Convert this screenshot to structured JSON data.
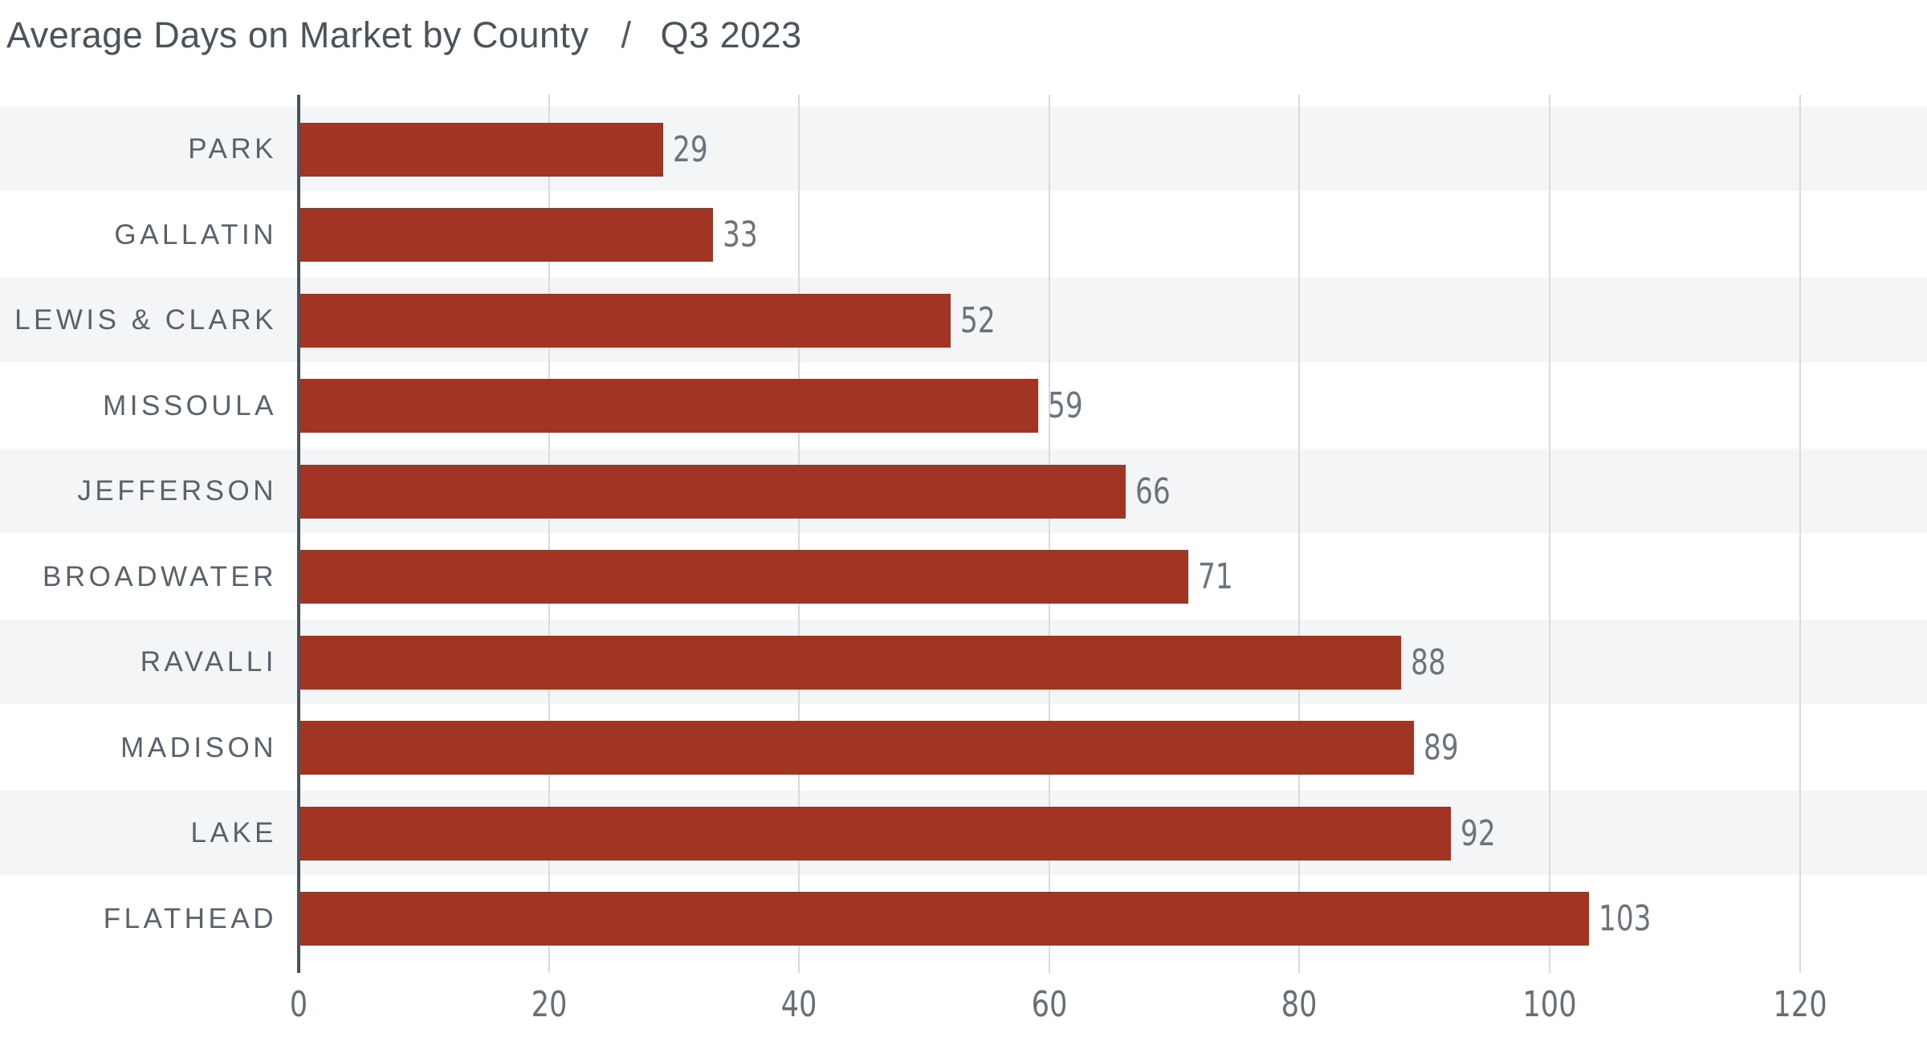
{
  "title": {
    "main": "Average Days on Market by County",
    "separator": "/",
    "period": "Q3 2023"
  },
  "chart_data": {
    "type": "bar",
    "orientation": "horizontal",
    "title": "Average Days on Market by County / Q3 2023",
    "categories": [
      "PARK",
      "GALLATIN",
      "LEWIS & CLARK",
      "MISSOULA",
      "JEFFERSON",
      "BROADWATER",
      "RAVALLI",
      "MADISON",
      "LAKE",
      "FLATHEAD"
    ],
    "values": [
      29,
      33,
      52,
      59,
      66,
      71,
      88,
      89,
      92,
      103
    ],
    "xlabel": "",
    "ylabel": "",
    "xlim": [
      0,
      120
    ],
    "xticks": [
      0,
      20,
      40,
      60,
      80,
      100,
      120
    ],
    "grid": true,
    "legend": false,
    "colors": {
      "bar": "#a23423",
      "row_stripe": "#f4f5f6",
      "gridline": "#d9dadb",
      "axis_line": "#4a525a",
      "category_label": "#59626a",
      "value_label": "#6b737d",
      "tick_label": "#666e76",
      "title": "#4b545b"
    }
  }
}
